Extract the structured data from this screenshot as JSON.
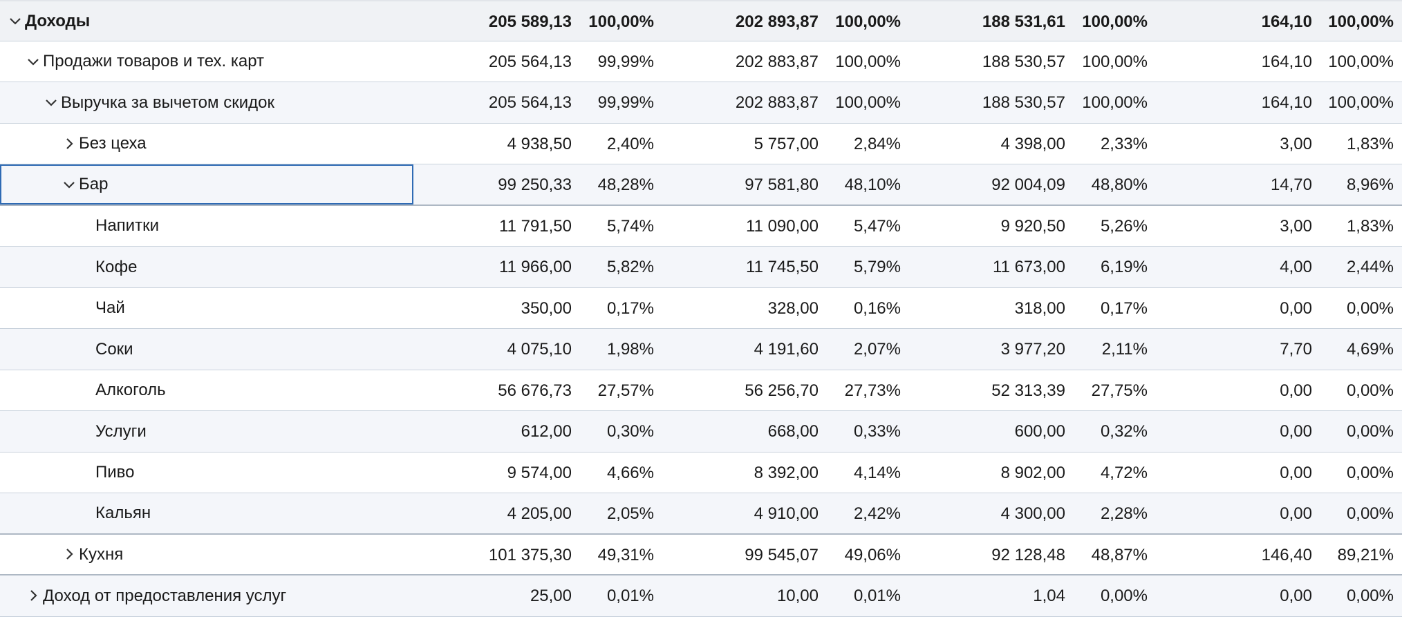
{
  "rows": [
    {
      "label": "Доходы",
      "level": 0,
      "toggle": "expanded",
      "values": [
        "205 589,13",
        "100,00%",
        "202 893,87",
        "100,00%",
        "188 531,61",
        "100,00%",
        "164,10",
        "100,00%"
      ]
    },
    {
      "label": "Продажи товаров и тех. карт",
      "level": 1,
      "toggle": "expanded",
      "values": [
        "205 564,13",
        "99,99%",
        "202 883,87",
        "100,00%",
        "188 530,57",
        "100,00%",
        "164,10",
        "100,00%"
      ]
    },
    {
      "label": "Выручка за вычетом скидок",
      "level": 2,
      "toggle": "expanded",
      "values": [
        "205 564,13",
        "99,99%",
        "202 883,87",
        "100,00%",
        "188 530,57",
        "100,00%",
        "164,10",
        "100,00%"
      ]
    },
    {
      "label": "Без цеха",
      "level": 3,
      "toggle": "collapsed",
      "values": [
        "4 938,50",
        "2,40%",
        "5 757,00",
        "2,84%",
        "4 398,00",
        "2,33%",
        "3,00",
        "1,83%"
      ]
    },
    {
      "label": "Бар",
      "level": 3,
      "toggle": "expanded",
      "values": [
        "99 250,33",
        "48,28%",
        "97 581,80",
        "48,10%",
        "92 004,09",
        "48,80%",
        "14,70",
        "8,96%"
      ]
    },
    {
      "label": "Напитки",
      "level": 4,
      "toggle": "none",
      "values": [
        "11 791,50",
        "5,74%",
        "11 090,00",
        "5,47%",
        "9 920,50",
        "5,26%",
        "3,00",
        "1,83%"
      ]
    },
    {
      "label": "Кофе",
      "level": 4,
      "toggle": "none",
      "values": [
        "11 966,00",
        "5,82%",
        "11 745,50",
        "5,79%",
        "11 673,00",
        "6,19%",
        "4,00",
        "2,44%"
      ]
    },
    {
      "label": "Чай",
      "level": 4,
      "toggle": "none",
      "values": [
        "350,00",
        "0,17%",
        "328,00",
        "0,16%",
        "318,00",
        "0,17%",
        "0,00",
        "0,00%"
      ]
    },
    {
      "label": "Соки",
      "level": 4,
      "toggle": "none",
      "values": [
        "4 075,10",
        "1,98%",
        "4 191,60",
        "2,07%",
        "3 977,20",
        "2,11%",
        "7,70",
        "4,69%"
      ]
    },
    {
      "label": "Алкоголь",
      "level": 4,
      "toggle": "none",
      "values": [
        "56 676,73",
        "27,57%",
        "56 256,70",
        "27,73%",
        "52 313,39",
        "27,75%",
        "0,00",
        "0,00%"
      ]
    },
    {
      "label": "Услуги",
      "level": 4,
      "toggle": "none",
      "values": [
        "612,00",
        "0,30%",
        "668,00",
        "0,33%",
        "600,00",
        "0,32%",
        "0,00",
        "0,00%"
      ]
    },
    {
      "label": "Пиво",
      "level": 4,
      "toggle": "none",
      "values": [
        "9 574,00",
        "4,66%",
        "8 392,00",
        "4,14%",
        "8 902,00",
        "4,72%",
        "0,00",
        "0,00%"
      ]
    },
    {
      "label": "Кальян",
      "level": 4,
      "toggle": "none",
      "values": [
        "4 205,00",
        "2,05%",
        "4 910,00",
        "2,42%",
        "4 300,00",
        "2,28%",
        "0,00",
        "0,00%"
      ]
    },
    {
      "label": "Кухня",
      "level": 3,
      "toggle": "collapsed",
      "values": [
        "101 375,30",
        "49,31%",
        "99 545,07",
        "49,06%",
        "92 128,48",
        "48,87%",
        "146,40",
        "89,21%"
      ]
    },
    {
      "label": "Доход от предоставления услуг",
      "level": 1,
      "toggle": "collapsed",
      "values": [
        "25,00",
        "0,01%",
        "10,00",
        "0,01%",
        "1,04",
        "0,00%",
        "0,00",
        "0,00%"
      ]
    }
  ],
  "selected_row": "Бар",
  "colors": {
    "selection": "#2f6bb4",
    "stripe": "#f4f6fa",
    "grid": "#c9d2dc"
  },
  "icons": {
    "expanded": "chevron-down-icon",
    "collapsed": "chevron-right-icon"
  }
}
